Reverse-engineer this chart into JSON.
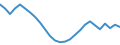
{
  "x": [
    0,
    1,
    2,
    3,
    4,
    5,
    6,
    7,
    8,
    9,
    10,
    11,
    12,
    13,
    14,
    15,
    16,
    17,
    18,
    19,
    20,
    21,
    22,
    23,
    24
  ],
  "y": [
    72,
    65,
    55,
    65,
    72,
    65,
    58,
    50,
    40,
    28,
    16,
    8,
    5,
    6,
    10,
    18,
    26,
    36,
    42,
    35,
    28,
    38,
    30,
    36,
    32
  ],
  "line_color": "#3d8ec9",
  "linewidth": 1.4,
  "background_color": "#ffffff",
  "ylim": [
    0,
    80
  ],
  "xlim": [
    0,
    24
  ]
}
